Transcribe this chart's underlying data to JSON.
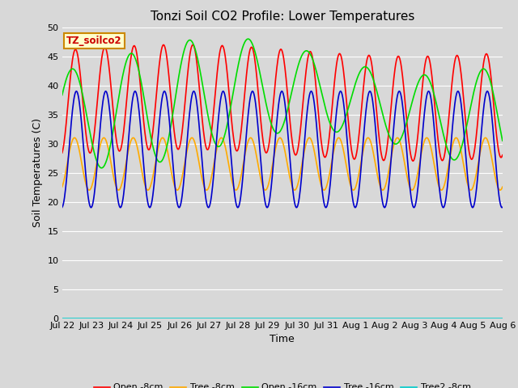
{
  "title": "Tonzi Soil CO2 Profile: Lower Temperatures",
  "xlabel": "Time",
  "ylabel": "Soil Temperatures (C)",
  "ylim": [
    0,
    50
  ],
  "yticks": [
    0,
    5,
    10,
    15,
    20,
    25,
    30,
    35,
    40,
    45,
    50
  ],
  "legend_label": "TZ_soilco2",
  "series_labels": [
    "Open -8cm",
    "Tree -8cm",
    "Open -16cm",
    "Tree -16cm",
    "Tree2 -8cm"
  ],
  "colors": [
    "#ff0000",
    "#ffaa00",
    "#00dd00",
    "#0000cc",
    "#00cccc"
  ],
  "linewidths": [
    1.2,
    1.2,
    1.2,
    1.2,
    1.2
  ],
  "outer_bg": "#d8d8d8",
  "plot_bg": "#d8d8d8",
  "title_fontsize": 11,
  "axis_label_fontsize": 9,
  "tick_label_fontsize": 8,
  "legend_box_facecolor": "#ffffcc",
  "legend_box_edgecolor": "#cc8800"
}
